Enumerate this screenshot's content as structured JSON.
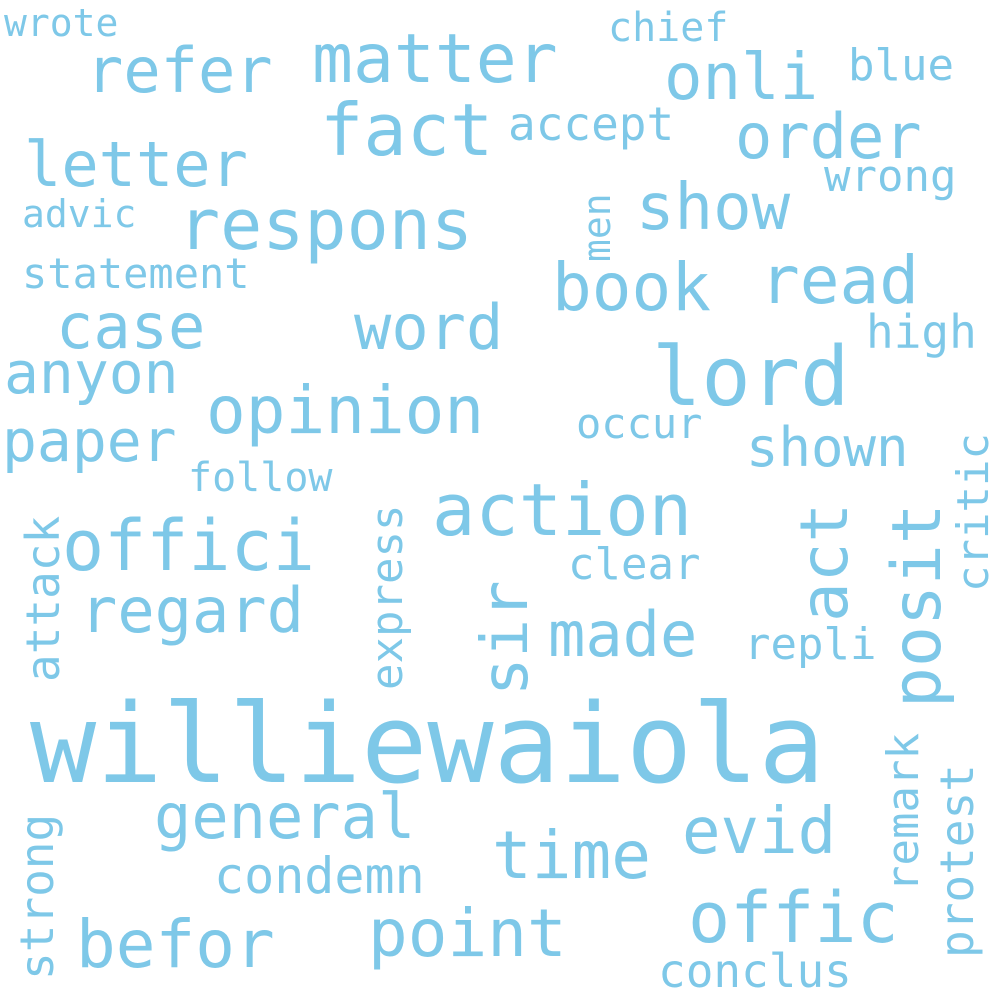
{
  "colors": {
    "background": "#ffffff",
    "word": "#7ec8e8"
  },
  "words": {
    "williewaiola": "williewaiola",
    "respons": "respons",
    "matter": "matter",
    "fact": "fact",
    "lord": "lord",
    "action": "action",
    "opinion": "opinion",
    "offici": "offici",
    "refer": "refer",
    "onli": "onli",
    "order": "order",
    "letter": "letter",
    "show": "show",
    "book": "book",
    "read": "read",
    "case": "case",
    "word": "word",
    "anyon": "anyon",
    "paper": "paper",
    "shown": "shown",
    "regard": "regard",
    "made": "made",
    "general": "general",
    "time": "time",
    "evid": "evid",
    "befor": "befor",
    "point": "point",
    "offic": "offic",
    "accept": "accept",
    "wrote": "wrote",
    "chief": "chief",
    "blue": "blue",
    "wrong": "wrong",
    "advic": "advic",
    "statement": "statement",
    "high": "high",
    "occur": "occur",
    "follow": "follow",
    "clear": "clear",
    "repli": "repli",
    "condemn": "condemn",
    "conclus": "conclus",
    "men": "men",
    "sir": "sir",
    "act": "act",
    "posit": "posit",
    "critic": "critic",
    "express": "express",
    "attack": "attack",
    "remark": "remark",
    "protest": "protest",
    "strong": "strong"
  }
}
